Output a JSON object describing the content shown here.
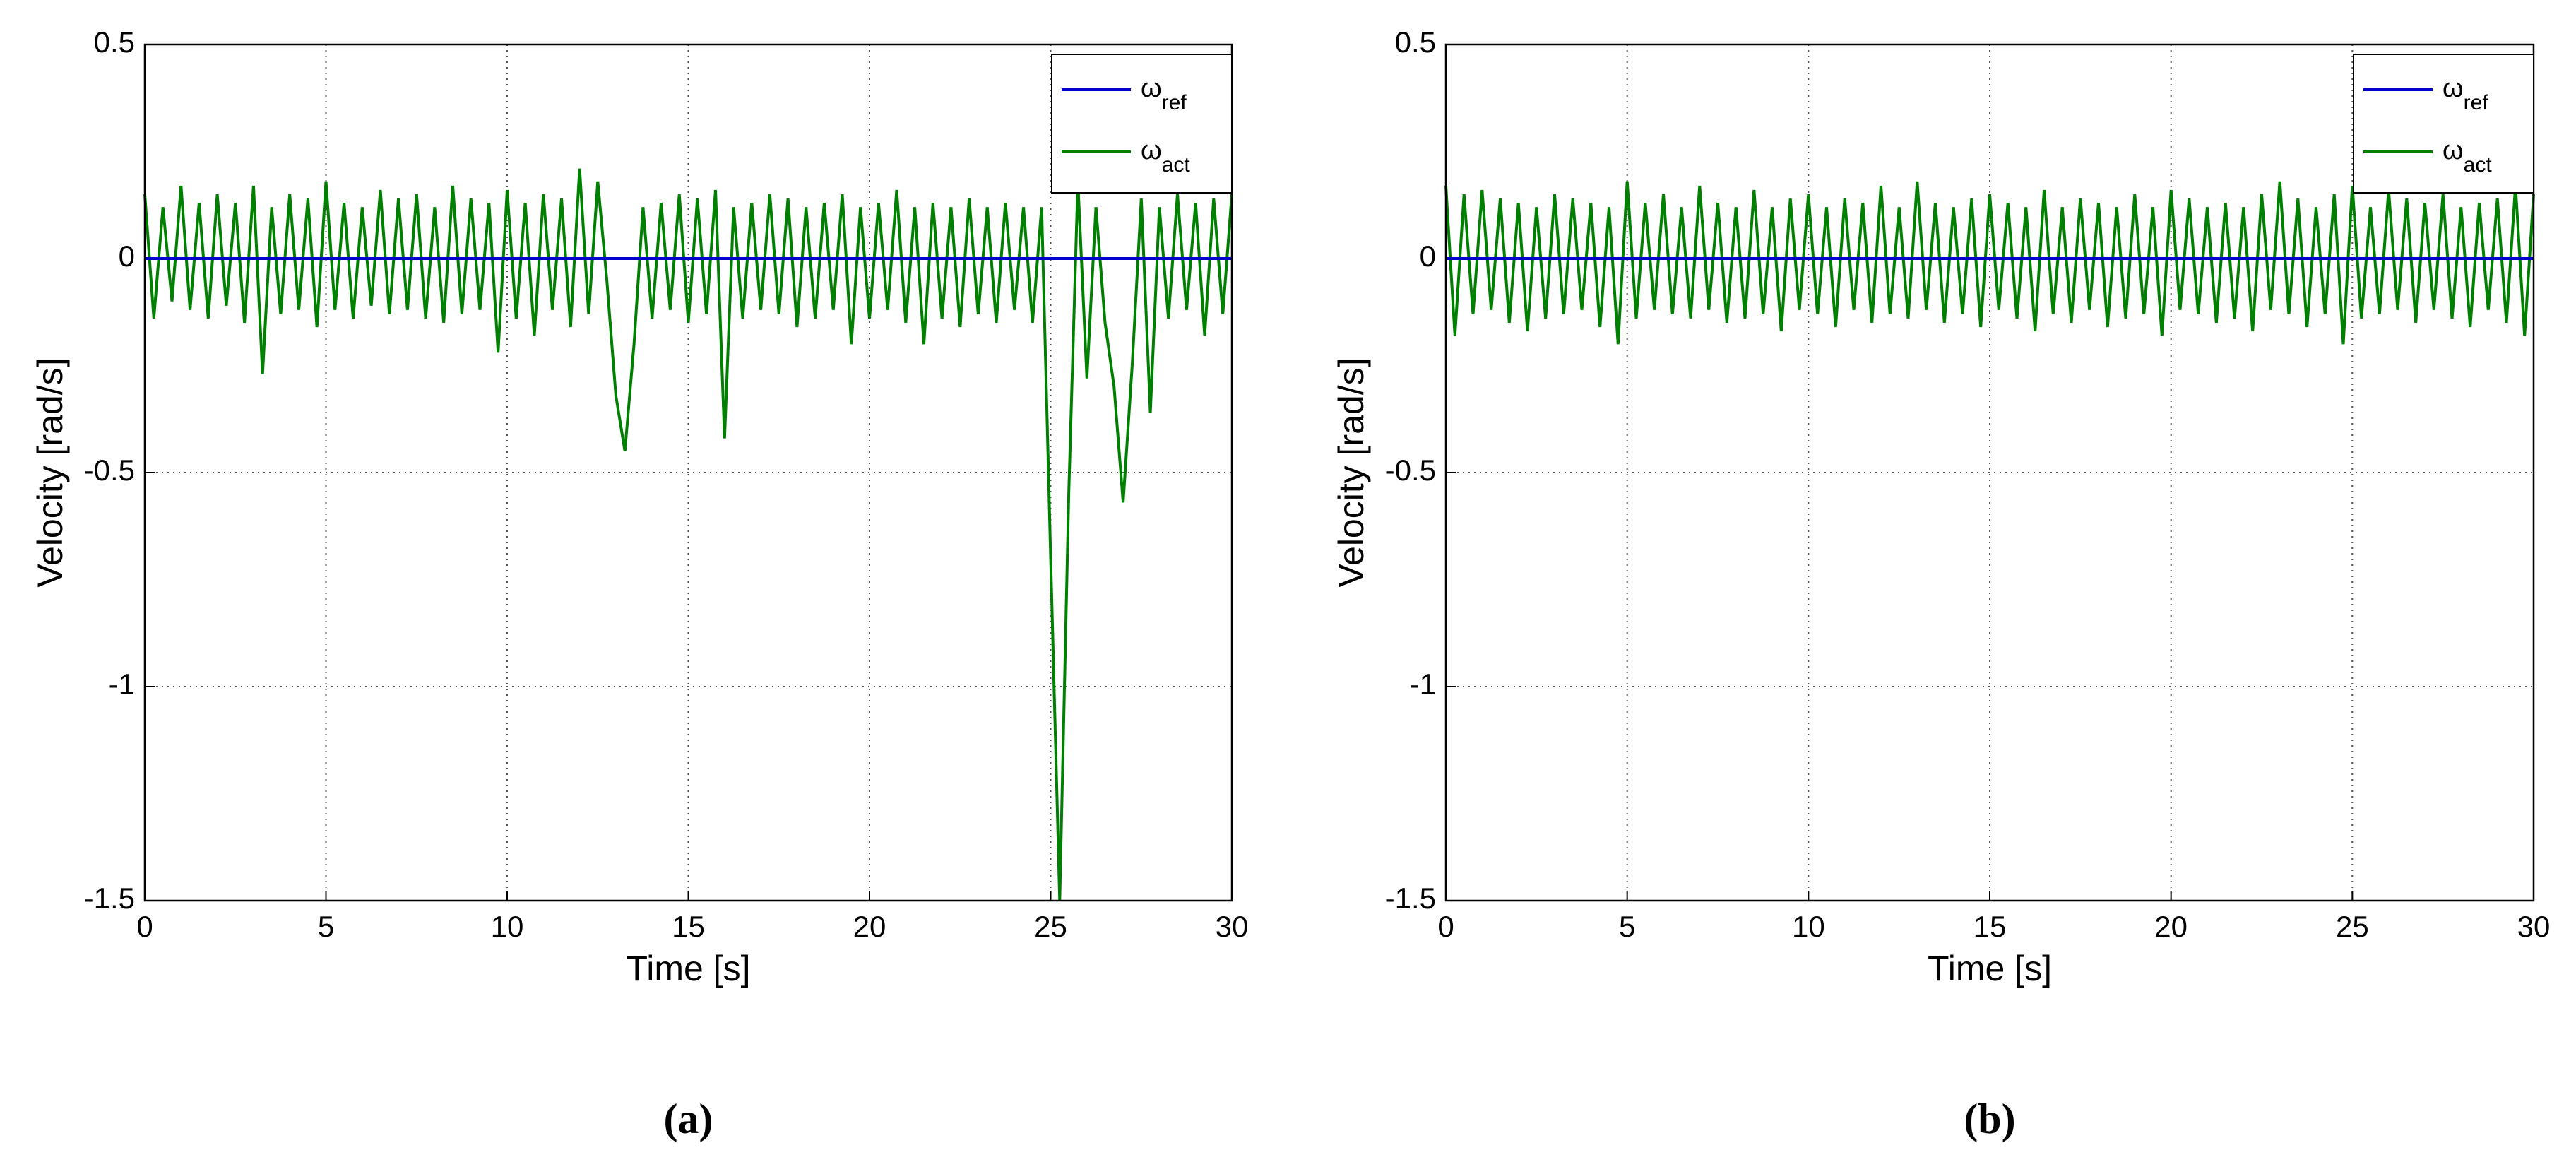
{
  "chart_data": [
    {
      "type": "line",
      "label": "(a)",
      "xlabel": "Time [s]",
      "ylabel": "Velocity [rad/s]",
      "xlim": [
        0,
        30
      ],
      "xticks": [
        0,
        5,
        10,
        15,
        20,
        25,
        30
      ],
      "ylim": [
        -1.5,
        0.5
      ],
      "yticks": [
        -1.5,
        -1,
        -0.5,
        0,
        0.5
      ],
      "grid": true,
      "legend": "upper right",
      "series": [
        {
          "name": "ω",
          "subscript": "ref",
          "color": "#0000cc",
          "x": [
            0,
            30
          ],
          "values": [
            0,
            0
          ]
        },
        {
          "name": "ω",
          "subscript": "act",
          "color": "#008000",
          "x": [
            0,
            0.25,
            0.5,
            0.75,
            1,
            1.25,
            1.5,
            1.75,
            2,
            2.25,
            2.5,
            2.75,
            3,
            3.25,
            3.5,
            3.75,
            4,
            4.25,
            4.5,
            4.75,
            5,
            5.25,
            5.5,
            5.75,
            6,
            6.25,
            6.5,
            6.75,
            7,
            7.25,
            7.5,
            7.75,
            8,
            8.25,
            8.5,
            8.75,
            9,
            9.25,
            9.5,
            9.75,
            10,
            10.25,
            10.5,
            10.75,
            11,
            11.25,
            11.5,
            11.75,
            12,
            12.25,
            12.5,
            12.75,
            13,
            13.25,
            13.5,
            13.75,
            14,
            14.25,
            14.5,
            14.75,
            15,
            15.25,
            15.5,
            15.75,
            16,
            16.25,
            16.5,
            16.75,
            17,
            17.25,
            17.5,
            17.75,
            18,
            18.25,
            18.5,
            18.75,
            19,
            19.25,
            19.5,
            19.75,
            20,
            20.25,
            20.5,
            20.75,
            21,
            21.25,
            21.5,
            21.75,
            22,
            22.25,
            22.5,
            22.75,
            23,
            23.25,
            23.5,
            23.75,
            24,
            24.25,
            24.5,
            24.75,
            25,
            25.25,
            25.5,
            25.75,
            26,
            26.25,
            26.5,
            26.75,
            27,
            27.25,
            27.5,
            27.75,
            28,
            28.25,
            28.5,
            28.75,
            29,
            29.25,
            29.5,
            29.75,
            30
          ],
          "values": [
            0.15,
            -0.14,
            0.12,
            -0.1,
            0.17,
            -0.12,
            0.13,
            -0.14,
            0.15,
            -0.11,
            0.13,
            -0.15,
            0.17,
            -0.27,
            0.12,
            -0.13,
            0.15,
            -0.12,
            0.14,
            -0.16,
            0.18,
            -0.12,
            0.13,
            -0.14,
            0.12,
            -0.11,
            0.16,
            -0.13,
            0.14,
            -0.12,
            0.15,
            -0.14,
            0.12,
            -0.15,
            0.17,
            -0.13,
            0.14,
            -0.12,
            0.13,
            -0.22,
            0.16,
            -0.14,
            0.13,
            -0.18,
            0.15,
            -0.12,
            0.14,
            -0.16,
            0.21,
            -0.13,
            0.18,
            -0.05,
            -0.32,
            -0.45,
            -0.2,
            0.12,
            -0.14,
            0.13,
            -0.12,
            0.15,
            -0.15,
            0.14,
            -0.13,
            0.16,
            -0.42,
            0.12,
            -0.14,
            0.13,
            -0.12,
            0.15,
            -0.13,
            0.14,
            -0.16,
            0.12,
            -0.14,
            0.13,
            -0.12,
            0.15,
            -0.2,
            0.12,
            -0.14,
            0.13,
            -0.12,
            0.16,
            -0.15,
            0.12,
            -0.2,
            0.13,
            -0.14,
            0.12,
            -0.16,
            0.14,
            -0.13,
            0.12,
            -0.15,
            0.13,
            -0.12,
            0.12,
            -0.15,
            0.12,
            -0.7,
            -1.5,
            -0.55,
            0.18,
            -0.28,
            0.12,
            -0.15,
            -0.3,
            -0.57,
            -0.25,
            0.14,
            -0.36,
            0.12,
            -0.14,
            0.15,
            -0.12,
            0.13,
            -0.18,
            0.14,
            -0.13,
            0.15
          ]
        }
      ]
    },
    {
      "type": "line",
      "label": "(b)",
      "xlabel": "Time [s]",
      "ylabel": "Velocity [rad/s]",
      "xlim": [
        0,
        30
      ],
      "xticks": [
        0,
        5,
        10,
        15,
        20,
        25,
        30
      ],
      "ylim": [
        -1.5,
        0.5
      ],
      "yticks": [
        -1.5,
        -1,
        -0.5,
        0,
        0.5
      ],
      "grid": true,
      "legend": "upper right",
      "series": [
        {
          "name": "ω",
          "subscript": "ref",
          "color": "#0000cc",
          "x": [
            0,
            30
          ],
          "values": [
            0,
            0
          ]
        },
        {
          "name": "ω",
          "subscript": "act",
          "color": "#008000",
          "x": [
            0,
            0.25,
            0.5,
            0.75,
            1,
            1.25,
            1.5,
            1.75,
            2,
            2.25,
            2.5,
            2.75,
            3,
            3.25,
            3.5,
            3.75,
            4,
            4.25,
            4.5,
            4.75,
            5,
            5.25,
            5.5,
            5.75,
            6,
            6.25,
            6.5,
            6.75,
            7,
            7.25,
            7.5,
            7.75,
            8,
            8.25,
            8.5,
            8.75,
            9,
            9.25,
            9.5,
            9.75,
            10,
            10.25,
            10.5,
            10.75,
            11,
            11.25,
            11.5,
            11.75,
            12,
            12.25,
            12.5,
            12.75,
            13,
            13.25,
            13.5,
            13.75,
            14,
            14.25,
            14.5,
            14.75,
            15,
            15.25,
            15.5,
            15.75,
            16,
            16.25,
            16.5,
            16.75,
            17,
            17.25,
            17.5,
            17.75,
            18,
            18.25,
            18.5,
            18.75,
            19,
            19.25,
            19.5,
            19.75,
            20,
            20.25,
            20.5,
            20.75,
            21,
            21.25,
            21.5,
            21.75,
            22,
            22.25,
            22.5,
            22.75,
            23,
            23.25,
            23.5,
            23.75,
            24,
            24.25,
            24.5,
            24.75,
            25,
            25.25,
            25.5,
            25.75,
            26,
            26.25,
            26.5,
            26.75,
            27,
            27.25,
            27.5,
            27.75,
            28,
            28.25,
            28.5,
            28.75,
            29,
            29.25,
            29.5,
            29.75,
            30
          ],
          "values": [
            0.17,
            -0.18,
            0.15,
            -0.13,
            0.16,
            -0.12,
            0.14,
            -0.15,
            0.13,
            -0.17,
            0.12,
            -0.14,
            0.15,
            -0.13,
            0.14,
            -0.12,
            0.13,
            -0.16,
            0.12,
            -0.2,
            0.18,
            -0.14,
            0.13,
            -0.12,
            0.15,
            -0.13,
            0.12,
            -0.14,
            0.17,
            -0.12,
            0.13,
            -0.15,
            0.12,
            -0.14,
            0.16,
            -0.13,
            0.12,
            -0.17,
            0.14,
            -0.12,
            0.15,
            -0.13,
            0.12,
            -0.16,
            0.14,
            -0.12,
            0.13,
            -0.15,
            0.17,
            -0.13,
            0.12,
            -0.14,
            0.18,
            -0.12,
            0.13,
            -0.15,
            0.12,
            -0.13,
            0.14,
            -0.16,
            0.15,
            -0.12,
            0.13,
            -0.14,
            0.12,
            -0.17,
            0.16,
            -0.13,
            0.12,
            -0.15,
            0.14,
            -0.12,
            0.13,
            -0.16,
            0.12,
            -0.14,
            0.15,
            -0.13,
            0.12,
            -0.18,
            0.16,
            -0.12,
            0.14,
            -0.13,
            0.12,
            -0.15,
            0.13,
            -0.14,
            0.12,
            -0.17,
            0.15,
            -0.12,
            0.18,
            -0.13,
            0.14,
            -0.16,
            0.12,
            -0.13,
            0.15,
            -0.2,
            0.17,
            -0.14,
            0.12,
            -0.13,
            0.16,
            -0.12,
            0.14,
            -0.15,
            0.13,
            -0.12,
            0.15,
            -0.14,
            0.12,
            -0.16,
            0.13,
            -0.12,
            0.14,
            -0.15,
            0.17,
            -0.18,
            0.15
          ]
        }
      ]
    }
  ]
}
